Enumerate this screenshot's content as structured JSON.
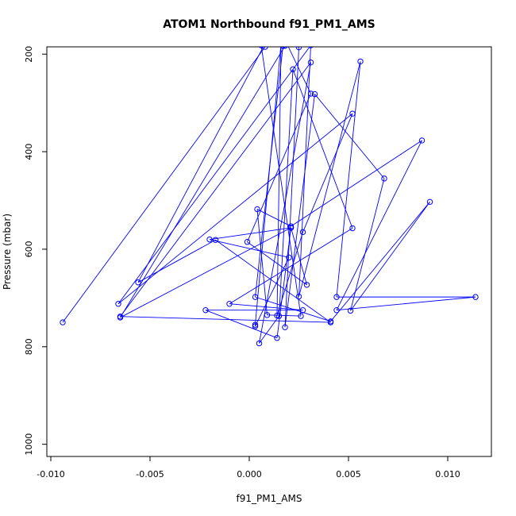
{
  "chart_data": {
    "type": "line",
    "title": "ATOM1 Northbound f91_PM1_AMS",
    "xlabel": "f91_PM1_AMS",
    "ylabel": "Pressure (mbar)",
    "xlim": [
      -0.0102,
      0.0122
    ],
    "ylim": [
      1025,
      185
    ],
    "y_reversed": true,
    "grid": false,
    "legend": "none",
    "x_ticks": [
      -0.01,
      -0.005,
      0,
      0.005,
      0.01
    ],
    "x_tick_labels": [
      "-0.010",
      "-0.005",
      "0.000",
      "0.005",
      "0.010"
    ],
    "y_ticks": [
      200,
      400,
      600,
      800,
      1000
    ],
    "y_tick_labels": [
      "200",
      "400",
      "600",
      "800",
      "1000"
    ],
    "series": [
      {
        "color": "#0000ff",
        "marker": "open-circle",
        "x": [
          -0.0094,
          0.0008,
          0.0016,
          0.0014,
          0.0027,
          0.0052,
          -0.0066,
          0.0031,
          0.0025,
          0.0056,
          0.0044,
          0.0114,
          0.0044,
          0.0087,
          0.0021,
          0.0004,
          0.0009,
          0.0026,
          0.0006,
          0.0017,
          0.0003,
          0.0041,
          0.0091,
          0.0051,
          0.0068,
          0.0033,
          0.0018,
          0.0025,
          0.0016,
          0.0003,
          0.0003,
          0.002,
          -0.002,
          0.0021,
          0.0014,
          -0.0022,
          0.0027,
          -0.001,
          0.0052,
          0.0022,
          0.0015,
          0.0005,
          0.0031,
          -0.0065,
          0.0041,
          -0.0017,
          -0.0056,
          0.0008,
          0.0019,
          0.0031,
          -0.0001,
          0.0029,
          0.0021,
          -0.0065,
          0.0018
        ],
        "y": [
          750,
          185,
          178,
          736,
          565,
          322,
          712,
          182,
          697,
          215,
          698,
          698,
          725,
          377,
          553,
          518,
          735,
          737,
          182,
          183,
          698,
          748,
          503,
          726,
          455,
          282,
          760,
          186,
          179,
          755,
          758,
          617,
          580,
          556,
          782,
          725,
          725,
          712,
          557,
          231,
          737,
          793,
          217,
          738,
          750,
          581,
          668,
          178,
          179,
          281,
          585,
          673,
          556,
          740,
          183
        ]
      }
    ]
  }
}
